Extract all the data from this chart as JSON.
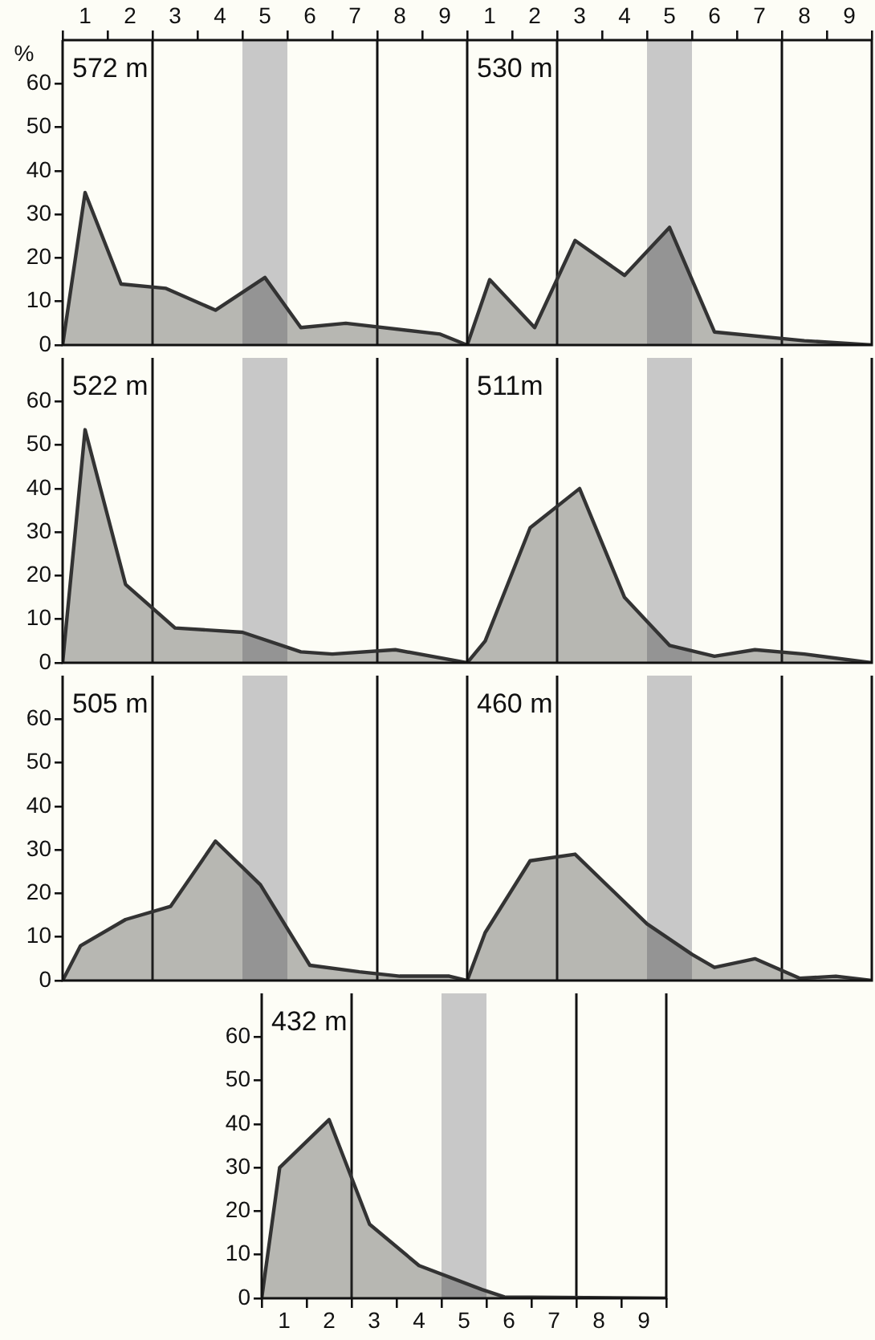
{
  "chart_data": [
    {
      "type": "area",
      "title": "572 m",
      "ylabel": "%",
      "xlim": [
        0.5,
        9.5
      ],
      "xticks": [
        {
          "value": 0.5,
          "label": null
        },
        1,
        {
          "value": 1.5,
          "label": null
        },
        2,
        {
          "value": 2.5,
          "label": null
        },
        3,
        {
          "value": 3.5,
          "label": null
        },
        4,
        {
          "value": 4.5,
          "label": null
        },
        5,
        {
          "value": 5.5,
          "label": null
        },
        6,
        {
          "value": 6.5,
          "label": null
        },
        7,
        {
          "value": 7.5,
          "label": null
        },
        8,
        {
          "value": 8.5,
          "label": null
        },
        9,
        {
          "value": 9.5,
          "label": null
        }
      ],
      "ylim": [
        0,
        70
      ],
      "yticks": [
        0,
        10,
        20,
        30,
        40,
        50,
        60
      ],
      "legend": false,
      "grid": false,
      "series": [
        {
          "color": "#333333",
          "x": [
            0.5,
            1,
            1.8,
            2.8,
            3.9,
            5,
            5.8,
            6.8,
            8.9,
            9.5
          ],
          "values": [
            0,
            35,
            14,
            13,
            8,
            15.5,
            4,
            5,
            2.5,
            0
          ]
        }
      ],
      "bands": [
        {
          "axis": "x",
          "from": 4.5,
          "to": 5.5,
          "color": "#c8c8c8"
        }
      ],
      "ref_lines": [
        {
          "axis": "x",
          "value": 2.5,
          "label": null
        },
        {
          "axis": "x",
          "value": 7.5,
          "label": null
        }
      ]
    },
    {
      "type": "area",
      "title": "530 m",
      "xlim": [
        0.5,
        9.5
      ],
      "xticks": [
        {
          "value": 0.5,
          "label": null
        },
        1,
        {
          "value": 1.5,
          "label": null
        },
        2,
        {
          "value": 2.5,
          "label": null
        },
        3,
        {
          "value": 3.5,
          "label": null
        },
        4,
        {
          "value": 4.5,
          "label": null
        },
        5,
        {
          "value": 5.5,
          "label": null
        },
        6,
        {
          "value": 6.5,
          "label": null
        },
        7,
        {
          "value": 7.5,
          "label": null
        },
        8,
        {
          "value": 8.5,
          "label": null
        },
        9,
        {
          "value": 9.5,
          "label": null
        }
      ],
      "ylim": [
        0,
        70
      ],
      "yticks": [
        0,
        10,
        20,
        30,
        40,
        50,
        60
      ],
      "tick_labels": "x",
      "legend": false,
      "grid": false,
      "series": [
        {
          "color": "#333333",
          "x": [
            0.5,
            1,
            2,
            2.9,
            4,
            5,
            6,
            8,
            9.5
          ],
          "values": [
            0,
            15,
            4,
            24,
            16,
            27,
            3,
            1,
            0
          ]
        }
      ],
      "bands": [
        {
          "axis": "x",
          "from": 4.5,
          "to": 5.5,
          "color": "#c8c8c8"
        }
      ],
      "ref_lines": [
        {
          "axis": "x",
          "value": 2.5,
          "label": null
        },
        {
          "axis": "x",
          "value": 7.5,
          "label": null
        }
      ]
    },
    {
      "type": "area",
      "title": "522 m",
      "xlim": [
        0.5,
        9.5
      ],
      "ylim": [
        0,
        70
      ],
      "yticks": [
        0,
        10,
        20,
        30,
        40,
        50,
        60
      ],
      "tick_labels": "y",
      "legend": false,
      "grid": false,
      "series": [
        {
          "color": "#333333",
          "x": [
            0.5,
            1,
            1.9,
            3,
            4.5,
            5.8,
            6.5,
            7.9,
            9.5
          ],
          "values": [
            0,
            53.5,
            18,
            8,
            7,
            2.5,
            2,
            3,
            0
          ]
        }
      ],
      "bands": [
        {
          "axis": "x",
          "from": 4.5,
          "to": 5.5,
          "color": "#c8c8c8"
        }
      ],
      "ref_lines": [
        {
          "axis": "x",
          "value": 2.5,
          "label": null
        },
        {
          "axis": "x",
          "value": 7.5,
          "label": null
        }
      ]
    },
    {
      "type": "area",
      "title": "511m",
      "xlim": [
        0.5,
        9.5
      ],
      "ylim": [
        0,
        70
      ],
      "yticks": [
        0,
        10,
        20,
        30,
        40,
        50,
        60
      ],
      "tick_labels": false,
      "legend": false,
      "grid": false,
      "series": [
        {
          "color": "#333333",
          "x": [
            0.5,
            0.9,
            1.9,
            3,
            4,
            5,
            6,
            6.9,
            8,
            9.5
          ],
          "values": [
            0,
            5,
            31,
            40,
            15,
            4,
            1.5,
            3,
            2,
            0
          ]
        }
      ],
      "bands": [
        {
          "axis": "x",
          "from": 4.5,
          "to": 5.5,
          "color": "#c8c8c8"
        }
      ],
      "ref_lines": [
        {
          "axis": "x",
          "value": 2.5,
          "label": null
        },
        {
          "axis": "x",
          "value": 7.5,
          "label": null
        }
      ]
    },
    {
      "type": "area",
      "title": "505 m",
      "xlim": [
        0.5,
        9.5
      ],
      "ylim": [
        0,
        70
      ],
      "yticks": [
        0,
        10,
        20,
        30,
        40,
        50,
        60
      ],
      "tick_labels": "y",
      "legend": false,
      "grid": false,
      "series": [
        {
          "color": "#333333",
          "x": [
            0.5,
            0.9,
            1.9,
            2.9,
            3.9,
            4.9,
            6,
            7.1,
            8,
            9.1,
            9.5
          ],
          "values": [
            0,
            8,
            14,
            17,
            32,
            22,
            3.5,
            2,
            1,
            1,
            0
          ]
        }
      ],
      "bands": [
        {
          "axis": "x",
          "from": 4.5,
          "to": 5.5,
          "color": "#c8c8c8"
        }
      ],
      "ref_lines": [
        {
          "axis": "x",
          "value": 2.5,
          "label": null
        },
        {
          "axis": "x",
          "value": 7.5,
          "label": null
        }
      ]
    },
    {
      "type": "area",
      "title": "460 m",
      "xlim": [
        0.5,
        9.5
      ],
      "ylim": [
        0,
        70
      ],
      "yticks": [
        0,
        10,
        20,
        30,
        40,
        50,
        60
      ],
      "tick_labels": false,
      "legend": false,
      "grid": false,
      "series": [
        {
          "color": "#333333",
          "x": [
            0.5,
            0.9,
            1.9,
            2.9,
            4.5,
            5.5,
            6,
            6.9,
            7.9,
            8.7,
            9.5
          ],
          "values": [
            0,
            11,
            27.5,
            29,
            13,
            6,
            3,
            5,
            0.5,
            1,
            0
          ]
        }
      ],
      "bands": [
        {
          "axis": "x",
          "from": 4.5,
          "to": 5.5,
          "color": "#c8c8c8"
        }
      ],
      "ref_lines": [
        {
          "axis": "x",
          "value": 2.5,
          "label": null
        },
        {
          "axis": "x",
          "value": 7.5,
          "label": null
        }
      ]
    },
    {
      "type": "area",
      "title": "432 m",
      "xlim": [
        0.5,
        9.5
      ],
      "xticks": [
        {
          "value": 0.5,
          "label": null
        },
        1,
        {
          "value": 1.5,
          "label": null
        },
        2,
        {
          "value": 2.5,
          "label": null
        },
        3,
        {
          "value": 3.5,
          "label": null
        },
        4,
        {
          "value": 4.5,
          "label": null
        },
        5,
        {
          "value": 5.5,
          "label": null
        },
        6,
        {
          "value": 6.5,
          "label": null
        },
        7,
        {
          "value": 7.5,
          "label": null
        },
        8,
        {
          "value": 8.5,
          "label": null
        },
        9,
        {
          "value": 9.5,
          "label": null
        }
      ],
      "ylim": [
        0,
        70
      ],
      "yticks": [
        0,
        10,
        20,
        30,
        40,
        50,
        60
      ],
      "legend": false,
      "grid": false,
      "series": [
        {
          "color": "#333333",
          "x": [
            0.5,
            0.9,
            2,
            2.9,
            4,
            5.4,
            5.9,
            9.5
          ],
          "values": [
            0,
            30,
            41,
            17,
            7.5,
            2,
            0.3,
            0
          ]
        }
      ],
      "bands": [
        {
          "axis": "x",
          "from": 4.5,
          "to": 5.5,
          "color": "#c8c8c8"
        }
      ],
      "ref_lines": [
        {
          "axis": "x",
          "value": 2.5,
          "label": null
        },
        {
          "axis": "x",
          "value": 7.5,
          "label": null
        }
      ]
    }
  ]
}
